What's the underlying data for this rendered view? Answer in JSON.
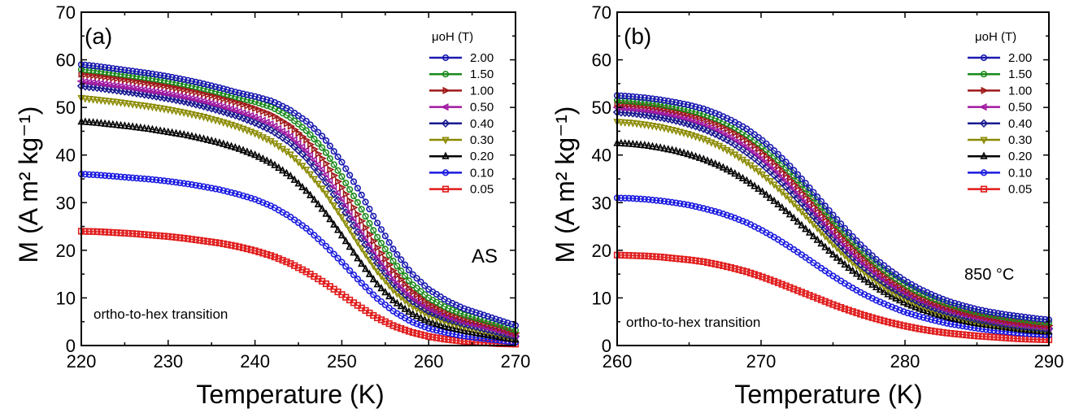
{
  "chart_data": [
    {
      "type": "scatter",
      "panel_label": "(a)",
      "xlabel": "Temperature (K)",
      "ylabel": "M (A m² kg⁻¹)",
      "xlim": [
        220,
        270
      ],
      "ylim": [
        0,
        70
      ],
      "xticks": [
        220,
        230,
        240,
        250,
        260,
        270
      ],
      "yticks": [
        0,
        10,
        20,
        30,
        40,
        50,
        60,
        70
      ],
      "legend_title": "μoH (T)",
      "legend_position": "top-right",
      "annotations": [
        "ortho-to-hex transition",
        "AS"
      ],
      "x": [
        220,
        222,
        224,
        226,
        228,
        230,
        232,
        234,
        236,
        238,
        240,
        242,
        244,
        246,
        248,
        250,
        252,
        254,
        256,
        258,
        260,
        262,
        264,
        266,
        268,
        270
      ],
      "series": [
        {
          "name": "2.00",
          "marker": "o",
          "color": "#1a1ab0",
          "values": [
            59.0,
            58.6,
            58.1,
            57.6,
            57.1,
            56.5,
            55.8,
            55.0,
            54.1,
            53.1,
            52.3,
            51.3,
            49.5,
            47.0,
            43.5,
            38.5,
            32.5,
            26.0,
            20.0,
            15.2,
            11.8,
            9.5,
            7.8,
            6.6,
            5.4,
            4.2
          ]
        },
        {
          "name": "1.50",
          "marker": "o",
          "color": "#1b8a1b",
          "values": [
            58.0,
            57.6,
            57.1,
            56.6,
            56.1,
            55.5,
            54.8,
            54.0,
            53.1,
            52.1,
            51.2,
            50.0,
            48.0,
            45.0,
            41.0,
            35.5,
            29.5,
            23.0,
            17.5,
            13.0,
            10.0,
            8.0,
            6.5,
            5.5,
            4.5,
            3.2
          ]
        },
        {
          "name": "1.00",
          "marker": ">",
          "color": "#a01818",
          "values": [
            57.0,
            56.6,
            56.1,
            55.6,
            55.0,
            54.4,
            53.7,
            52.9,
            52.0,
            51.0,
            49.8,
            48.4,
            46.2,
            43.0,
            38.7,
            33.2,
            27.0,
            20.8,
            15.5,
            11.5,
            8.8,
            7.0,
            5.7,
            4.8,
            3.8,
            2.6
          ]
        },
        {
          "name": "0.50",
          "marker": "<",
          "color": "#a01aa0",
          "values": [
            55.5,
            55.1,
            54.6,
            54.1,
            53.5,
            52.9,
            52.2,
            51.4,
            50.4,
            49.3,
            48.0,
            46.4,
            44.1,
            40.8,
            36.4,
            30.8,
            24.7,
            18.8,
            13.8,
            10.2,
            7.8,
            6.2,
            5.0,
            4.1,
            3.2,
            2.1
          ]
        },
        {
          "name": "0.40",
          "marker": "d",
          "color": "#1a1a90",
          "values": [
            54.5,
            54.1,
            53.6,
            53.1,
            52.5,
            51.9,
            51.2,
            50.3,
            49.3,
            48.2,
            46.8,
            45.1,
            42.7,
            39.3,
            34.8,
            29.3,
            23.3,
            17.6,
            12.9,
            9.5,
            7.2,
            5.7,
            4.6,
            3.7,
            2.8,
            1.9
          ]
        },
        {
          "name": "0.30",
          "marker": "v",
          "color": "#8a8a00",
          "values": [
            52.0,
            51.6,
            51.2,
            50.7,
            50.2,
            49.6,
            48.9,
            48.1,
            47.1,
            46.0,
            44.6,
            42.8,
            40.3,
            36.8,
            32.4,
            27.0,
            21.2,
            15.8,
            11.5,
            8.4,
            6.4,
            5.0,
            4.0,
            3.2,
            2.4,
            1.6
          ]
        },
        {
          "name": "0.20",
          "marker": "^",
          "color": "#000000",
          "values": [
            47.0,
            46.7,
            46.3,
            45.9,
            45.4,
            44.8,
            44.2,
            43.4,
            42.5,
            41.4,
            40.0,
            38.2,
            35.7,
            32.3,
            28.1,
            23.1,
            17.8,
            13.0,
            9.3,
            6.7,
            5.0,
            3.9,
            3.1,
            2.4,
            1.8,
            1.2
          ]
        },
        {
          "name": "0.10",
          "marker": "o",
          "color": "#1a1ae0",
          "values": [
            36.0,
            35.8,
            35.5,
            35.2,
            34.9,
            34.5,
            34.0,
            33.4,
            32.7,
            31.8,
            30.7,
            29.2,
            27.1,
            24.5,
            21.2,
            17.5,
            13.6,
            10.0,
            7.1,
            5.0,
            3.6,
            2.7,
            2.0,
            1.5,
            1.1,
            0.7
          ]
        },
        {
          "name": "0.05",
          "marker": "s",
          "color": "#e01a1a",
          "values": [
            24.0,
            23.9,
            23.7,
            23.5,
            23.2,
            22.9,
            22.5,
            22.0,
            21.5,
            20.8,
            19.9,
            18.8,
            17.3,
            15.4,
            13.2,
            10.7,
            8.2,
            5.9,
            4.1,
            2.8,
            1.9,
            1.3,
            0.9,
            0.6,
            0.4,
            0.3
          ]
        }
      ]
    },
    {
      "type": "scatter",
      "panel_label": "(b)",
      "xlabel": "Temperature (K)",
      "ylabel": "M (A m² kg⁻¹)",
      "xlim": [
        260,
        290
      ],
      "ylim": [
        0,
        70
      ],
      "xticks": [
        260,
        270,
        280,
        290
      ],
      "yticks": [
        0,
        10,
        20,
        30,
        40,
        50,
        60,
        70
      ],
      "legend_title": "μoH (T)",
      "legend_position": "top-right",
      "annotations": [
        "ortho-to-hex transition",
        "850 °C"
      ],
      "x": [
        260,
        261,
        262,
        263,
        264,
        265,
        266,
        267,
        268,
        269,
        270,
        271,
        272,
        273,
        274,
        275,
        276,
        277,
        278,
        279,
        280,
        281,
        282,
        283,
        284,
        285,
        286,
        287,
        288,
        289,
        290
      ],
      "series": [
        {
          "name": "2.00",
          "marker": "o",
          "color": "#1a1ab0",
          "values": [
            52.5,
            52.3,
            52.0,
            51.6,
            51.1,
            50.5,
            49.7,
            48.6,
            47.2,
            45.5,
            43.3,
            40.7,
            37.7,
            34.4,
            30.9,
            27.4,
            24.0,
            20.9,
            18.1,
            15.7,
            13.6,
            11.9,
            10.5,
            9.3,
            8.4,
            7.6,
            7.0,
            6.5,
            6.1,
            5.7,
            5.4
          ]
        },
        {
          "name": "1.50",
          "marker": "o",
          "color": "#1b8a1b",
          "values": [
            51.5,
            51.3,
            51.0,
            50.6,
            50.1,
            49.4,
            48.6,
            47.5,
            46.1,
            44.3,
            42.1,
            39.5,
            36.5,
            33.2,
            29.7,
            26.2,
            22.9,
            19.8,
            17.1,
            14.8,
            12.8,
            11.1,
            9.8,
            8.7,
            7.8,
            7.0,
            6.4,
            5.9,
            5.5,
            5.1,
            4.8
          ]
        },
        {
          "name": "1.00",
          "marker": ">",
          "color": "#a01818",
          "values": [
            50.8,
            50.6,
            50.3,
            49.9,
            49.3,
            48.6,
            47.7,
            46.5,
            45.0,
            43.2,
            40.9,
            38.2,
            35.2,
            31.9,
            28.4,
            25.0,
            21.7,
            18.7,
            16.1,
            13.8,
            11.9,
            10.3,
            9.0,
            8.0,
            7.1,
            6.4,
            5.8,
            5.3,
            4.9,
            4.5,
            4.2
          ]
        },
        {
          "name": "0.50",
          "marker": "<",
          "color": "#a01aa0",
          "values": [
            50.0,
            49.8,
            49.5,
            49.0,
            48.4,
            47.6,
            46.6,
            45.3,
            43.7,
            41.8,
            39.5,
            36.8,
            33.8,
            30.5,
            27.1,
            23.7,
            20.5,
            17.6,
            15.1,
            12.9,
            11.1,
            9.6,
            8.4,
            7.4,
            6.6,
            5.9,
            5.3,
            4.8,
            4.4,
            4.1,
            3.8
          ]
        },
        {
          "name": "0.40",
          "marker": "d",
          "color": "#1a1a90",
          "values": [
            49.0,
            48.8,
            48.4,
            47.9,
            47.3,
            46.5,
            45.5,
            44.2,
            42.6,
            40.6,
            38.3,
            35.6,
            32.6,
            29.4,
            26.0,
            22.7,
            19.6,
            16.8,
            14.4,
            12.3,
            10.6,
            9.1,
            7.9,
            7.0,
            6.2,
            5.5,
            5.0,
            4.5,
            4.1,
            3.8,
            3.5
          ]
        },
        {
          "name": "0.30",
          "marker": "v",
          "color": "#8a8a00",
          "values": [
            47.0,
            46.8,
            46.4,
            45.9,
            45.2,
            44.4,
            43.4,
            42.1,
            40.5,
            38.5,
            36.2,
            33.6,
            30.7,
            27.6,
            24.4,
            21.3,
            18.4,
            15.8,
            13.5,
            11.5,
            9.9,
            8.5,
            7.4,
            6.5,
            5.8,
            5.1,
            4.6,
            4.2,
            3.8,
            3.5,
            3.2
          ]
        },
        {
          "name": "0.20",
          "marker": "^",
          "color": "#000000",
          "values": [
            42.5,
            42.3,
            42.0,
            41.5,
            40.9,
            40.1,
            39.1,
            37.9,
            36.4,
            34.6,
            32.5,
            30.1,
            27.5,
            24.7,
            21.9,
            19.1,
            16.5,
            14.2,
            12.2,
            10.4,
            8.9,
            7.7,
            6.7,
            5.9,
            5.2,
            4.6,
            4.2,
            3.8,
            3.4,
            3.1,
            2.9
          ]
        },
        {
          "name": "0.10",
          "marker": "o",
          "color": "#1a1ae0",
          "values": [
            31.0,
            30.9,
            30.7,
            30.4,
            30.0,
            29.5,
            28.8,
            28.0,
            27.0,
            25.8,
            24.3,
            22.6,
            20.7,
            18.7,
            16.6,
            14.6,
            12.7,
            11.0,
            9.5,
            8.2,
            7.0,
            6.1,
            5.3,
            4.6,
            4.1,
            3.6,
            3.2,
            2.9,
            2.6,
            2.4,
            2.2
          ]
        },
        {
          "name": "0.05",
          "marker": "s",
          "color": "#e01a1a",
          "values": [
            19.0,
            18.9,
            18.8,
            18.6,
            18.3,
            18.0,
            17.6,
            17.0,
            16.3,
            15.5,
            14.5,
            13.4,
            12.2,
            11.0,
            9.8,
            8.6,
            7.5,
            6.5,
            5.6,
            4.8,
            4.1,
            3.5,
            3.0,
            2.6,
            2.3,
            2.0,
            1.8,
            1.6,
            1.4,
            1.3,
            1.2
          ]
        }
      ]
    }
  ]
}
